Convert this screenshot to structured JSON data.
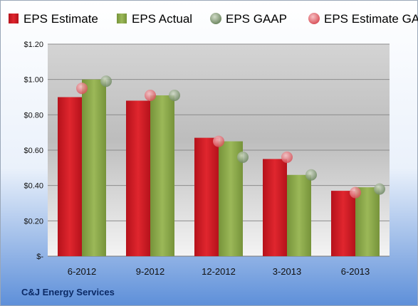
{
  "company": "C&J Energy Services",
  "chart_data": {
    "type": "bar",
    "categories": [
      "6-2012",
      "9-2012",
      "12-2012",
      "3-2013",
      "6-2013"
    ],
    "series": [
      {
        "name": "EPS Estimate",
        "kind": "bar",
        "color": "#d42027",
        "values": [
          0.9,
          0.88,
          0.67,
          0.55,
          0.37
        ]
      },
      {
        "name": "EPS Actual",
        "kind": "bar",
        "color": "#8fab4a",
        "values": [
          1.0,
          0.91,
          0.65,
          0.46,
          0.39
        ]
      },
      {
        "name": "EPS GAAP",
        "kind": "marker",
        "color": "#7f9a70",
        "values": [
          0.99,
          0.91,
          0.56,
          0.46,
          0.38
        ]
      },
      {
        "name": "EPS Estimate GAAP",
        "kind": "marker",
        "color": "#e8737a",
        "values": [
          0.95,
          0.91,
          0.65,
          0.56,
          0.36
        ]
      }
    ],
    "ylim": [
      0,
      1.2
    ],
    "yticks": [
      {
        "value": 0,
        "label": "$-"
      },
      {
        "value": 0.2,
        "label": "$0.20"
      },
      {
        "value": 0.4,
        "label": "$0.40"
      },
      {
        "value": 0.6,
        "label": "$0.60"
      },
      {
        "value": 0.8,
        "label": "$0.80"
      },
      {
        "value": 1.0,
        "label": "$1.00"
      },
      {
        "value": 1.2,
        "label": "$1.20"
      }
    ],
    "grid": true,
    "legend": "top"
  }
}
